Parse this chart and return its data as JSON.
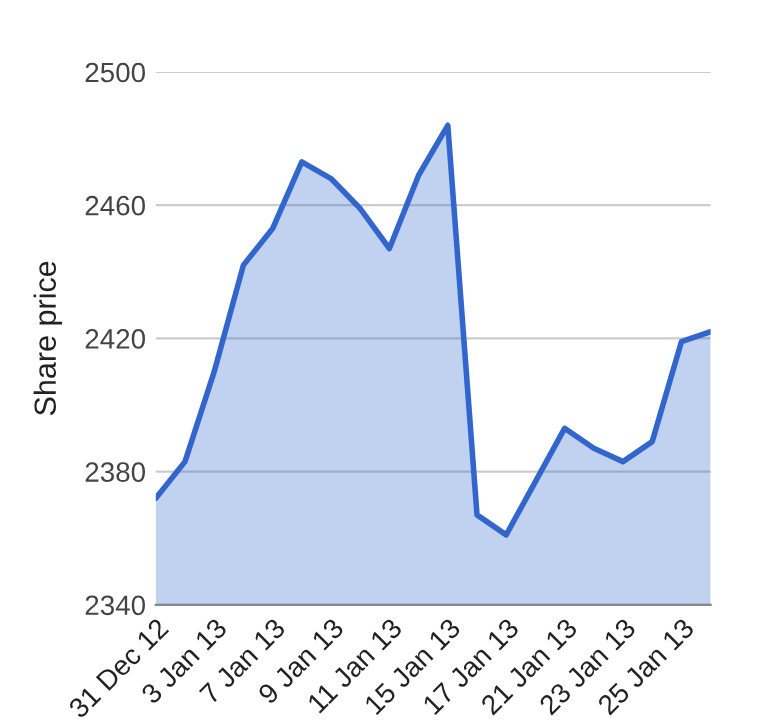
{
  "chart_data": {
    "type": "area",
    "ylabel": "Share price",
    "categories": [
      "31 Dec 12",
      null,
      "3 Jan 13",
      null,
      "7 Jan 13",
      null,
      "9 Jan 13",
      null,
      "11 Jan 13",
      null,
      "15 Jan 13",
      null,
      "17 Jan 13",
      null,
      "21 Jan 13",
      null,
      "23 Jan 13",
      null,
      "25 Jan 13",
      null
    ],
    "series": [
      {
        "color": "#3366cc",
        "values": [
          2372,
          2383,
          2410,
          2442,
          2453,
          2473,
          2468,
          2459,
          2447,
          2469,
          2484,
          2367,
          2361,
          2377,
          2393,
          2387,
          2383,
          2389,
          2419,
          2422
        ]
      }
    ],
    "ylim": [
      2340,
      2500
    ],
    "yticks": [
      2340,
      2380,
      2420,
      2460,
      2500
    ],
    "grid": "y",
    "legend": false
  }
}
